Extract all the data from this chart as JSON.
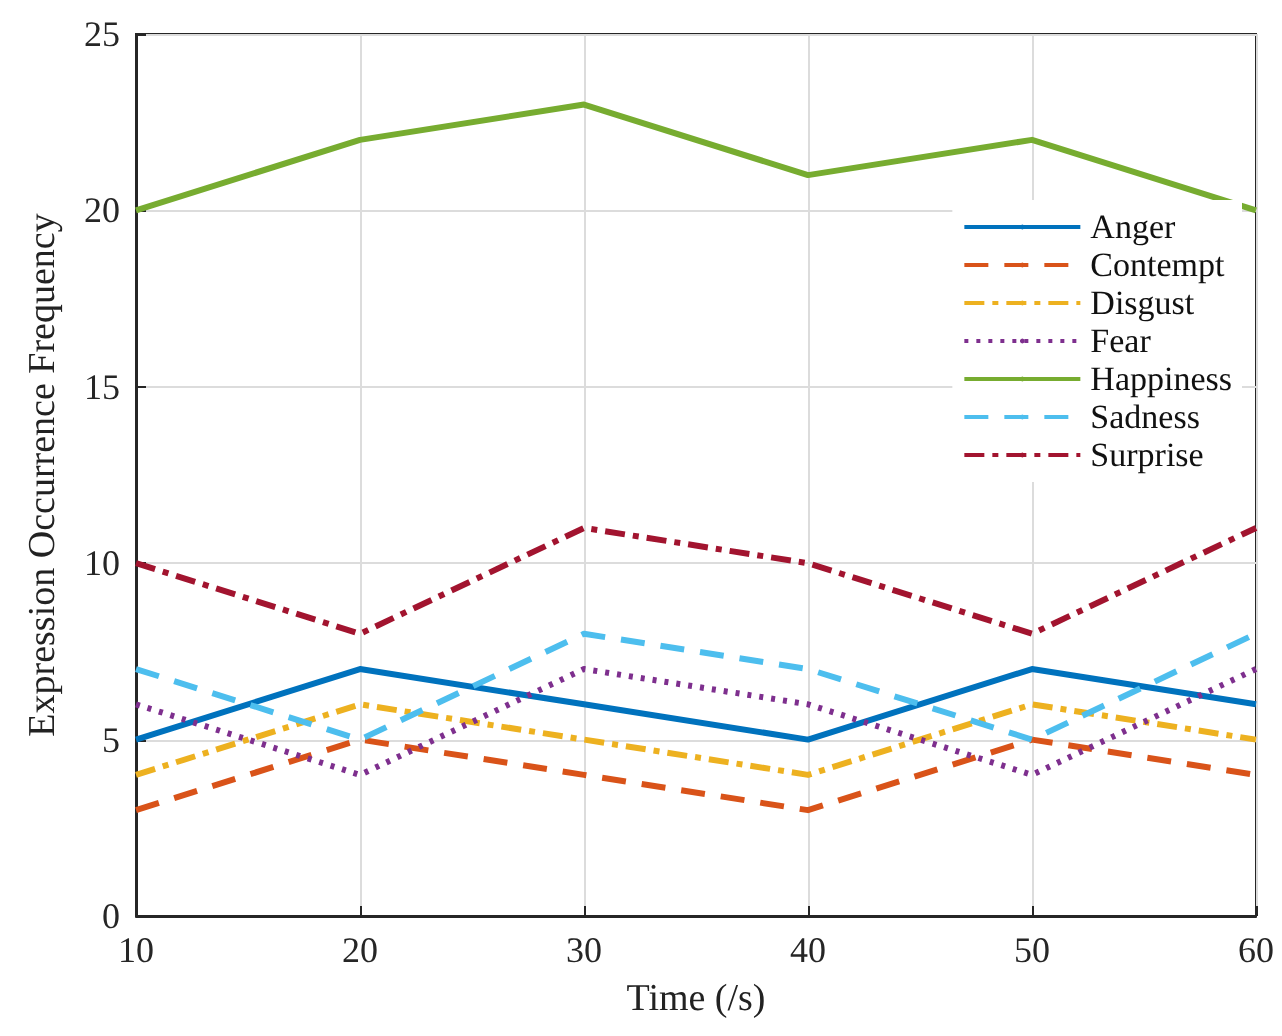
{
  "chart_data": {
    "type": "line",
    "xlabel": "Time (/s)",
    "ylabel": "Expression Occurrence Frequency",
    "x": [
      10,
      20,
      30,
      40,
      50,
      60
    ],
    "series": [
      {
        "name": "Anger",
        "color": "#0072bd",
        "line_style": "solid",
        "values": [
          5,
          7,
          6,
          5,
          7,
          6
        ]
      },
      {
        "name": "Contempt",
        "color": "#d95319",
        "line_style": "dashed",
        "values": [
          3,
          5,
          4,
          3,
          5,
          4
        ]
      },
      {
        "name": "Disgust",
        "color": "#edb120",
        "line_style": "dashdot",
        "values": [
          4,
          6,
          5,
          4,
          6,
          5
        ]
      },
      {
        "name": "Fear",
        "color": "#7e2f8e",
        "line_style": "dotted",
        "values": [
          6,
          4,
          7,
          6,
          4,
          7
        ]
      },
      {
        "name": "Happiness",
        "color": "#77ac30",
        "line_style": "solid",
        "values": [
          20,
          22,
          23,
          21,
          22,
          20
        ]
      },
      {
        "name": "Sadness",
        "color": "#4dbeee",
        "line_style": "dashed",
        "values": [
          7,
          5,
          8,
          7,
          5,
          8
        ]
      },
      {
        "name": "Surprise",
        "color": "#a2142f",
        "line_style": "dashdot",
        "values": [
          10,
          8,
          11,
          10,
          8,
          11
        ]
      }
    ],
    "xlim": [
      10,
      60
    ],
    "xticks": [
      10,
      20,
      30,
      40,
      50,
      60
    ],
    "ylim": [
      0,
      25
    ],
    "yticks": [
      0,
      5,
      10,
      15,
      20,
      25
    ],
    "grid": true,
    "legend": "top right",
    "marker": "none"
  }
}
